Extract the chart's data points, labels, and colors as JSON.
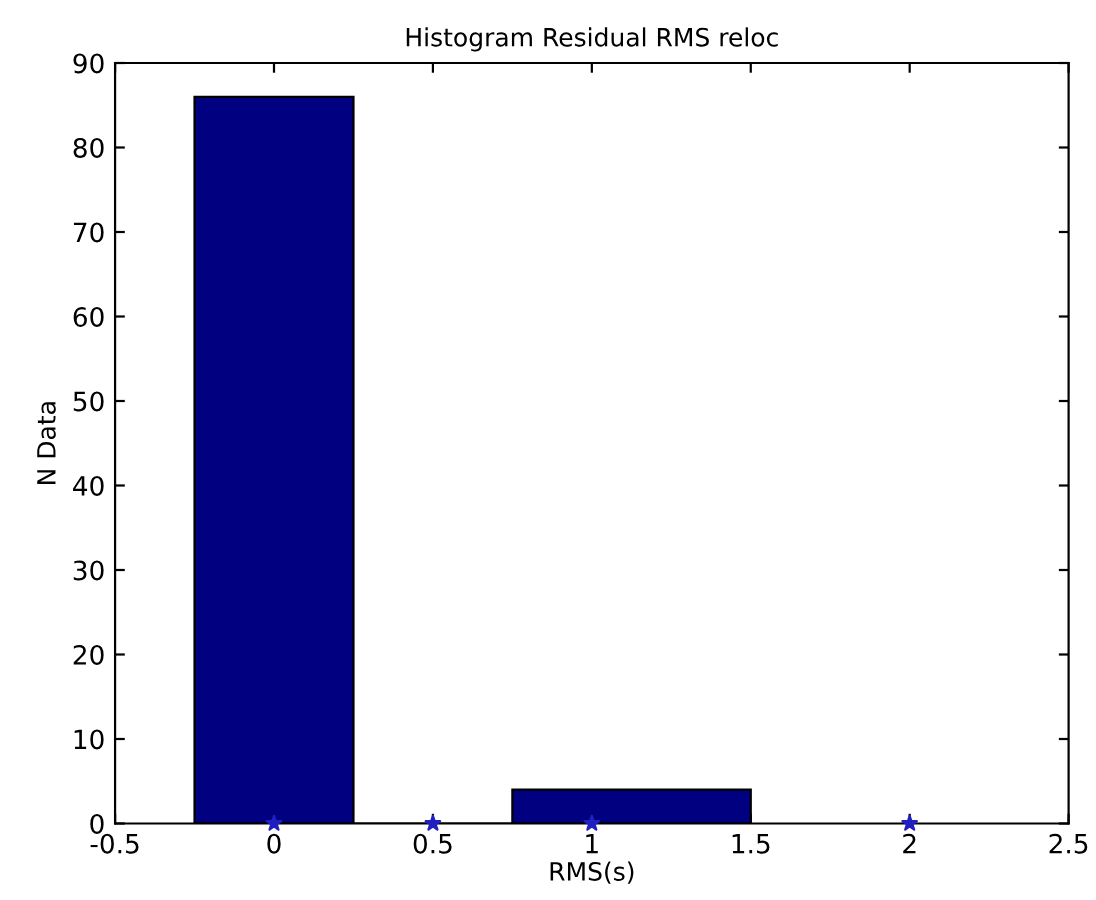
{
  "chart_data": {
    "type": "histogram",
    "title": "Histogram Residual RMS reloc",
    "xlabel": "RMS(s)",
    "ylabel": "N Data",
    "bins": [
      -0.25,
      0.25,
      0.75,
      1.5
    ],
    "values": [
      86,
      0,
      4
    ],
    "color": "#000080",
    "series": [
      {
        "type": "scatter",
        "x": [
          0,
          0.5,
          1,
          2
        ],
        "values": [
          0,
          0,
          0,
          0
        ],
        "color": "#2020c0"
      }
    ],
    "marker": "star",
    "xlim": [
      -0.5,
      2.5
    ],
    "xticks": [
      -0.5,
      0,
      0.5,
      1,
      1.5,
      2,
      2.5
    ],
    "ylim": [
      0,
      90
    ],
    "yticks": [
      0,
      10,
      20,
      30,
      40,
      50,
      60,
      70,
      80,
      90
    ],
    "grid": false
  }
}
